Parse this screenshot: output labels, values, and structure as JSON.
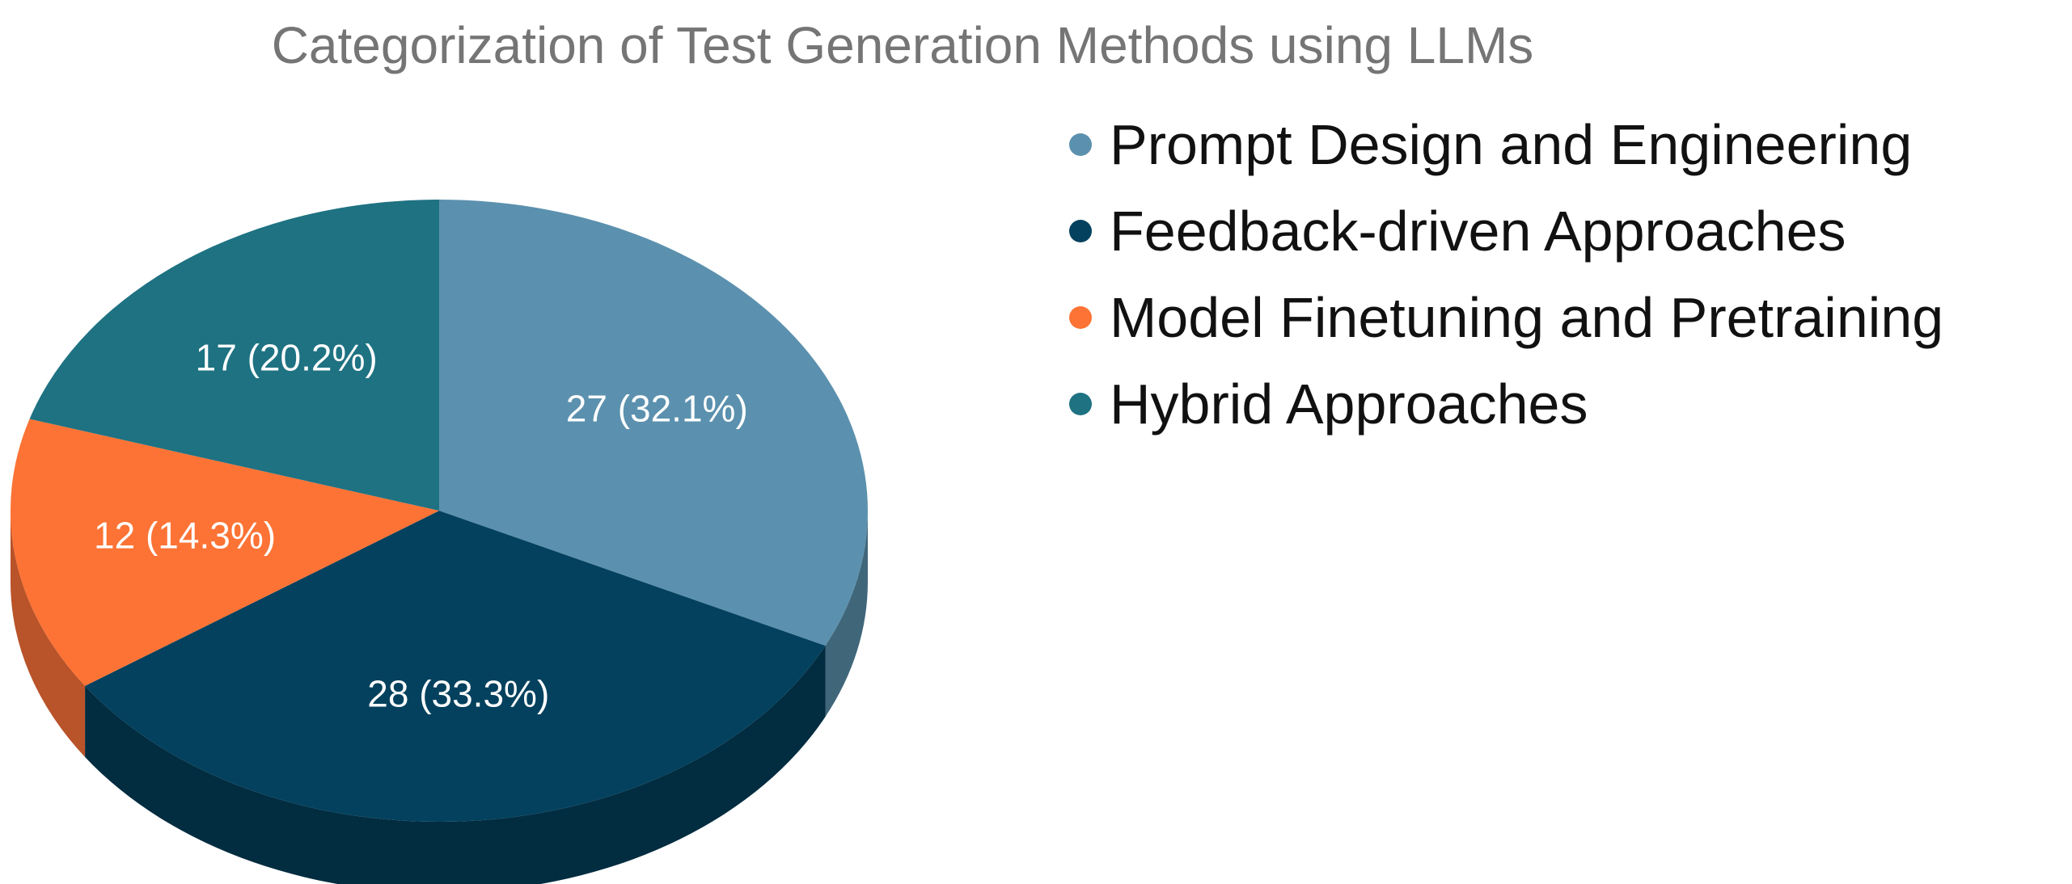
{
  "chart_data": {
    "type": "pie",
    "title": "Categorization of Test Generation Methods using LLMs",
    "legend_position": "right",
    "slices": [
      {
        "name": "Prompt Design and Engineering",
        "value": 27,
        "label": "27 (32.1%)",
        "color": "#5b91ae",
        "side_color": "#40667a"
      },
      {
        "name": "Feedback-driven Approaches",
        "value": 28,
        "label": "28 (33.3%)",
        "color": "#03415e",
        "side_color": "#022c40"
      },
      {
        "name": "Model Finetuning and Pretraining",
        "value": 12,
        "label": "12 (14.3%)",
        "color": "#fc7335",
        "side_color": "#b8532a"
      },
      {
        "name": "Hybrid Approaches",
        "value": 17,
        "label": "17 (20.2%)",
        "color": "#1e7282",
        "side_color": "#145561"
      }
    ]
  }
}
